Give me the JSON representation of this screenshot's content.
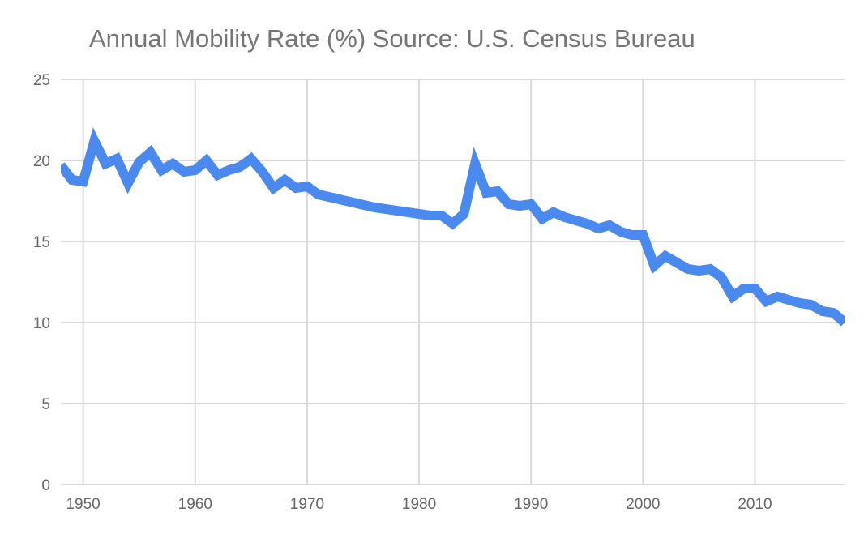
{
  "chart_data": {
    "type": "line",
    "title": "Annual Mobility Rate (%)  Source: U.S. Census Bureau",
    "xlabel": "",
    "ylabel": "",
    "xlim": [
      1948,
      2018
    ],
    "ylim": [
      0,
      25
    ],
    "grid": true,
    "line_color": "#4a89ee",
    "x_ticks": [
      1950,
      1960,
      1970,
      1980,
      1990,
      2000,
      2010
    ],
    "y_ticks": [
      0,
      5,
      10,
      15,
      20,
      25
    ],
    "series": [
      {
        "name": "Annual Mobility Rate (%)",
        "x": [
          1948,
          1949,
          1950,
          1951,
          1952,
          1953,
          1954,
          1955,
          1956,
          1957,
          1958,
          1959,
          1960,
          1961,
          1962,
          1963,
          1964,
          1965,
          1966,
          1967,
          1968,
          1969,
          1970,
          1971,
          1976,
          1981,
          1982,
          1983,
          1984,
          1985,
          1986,
          1987,
          1988,
          1989,
          1990,
          1991,
          1992,
          1993,
          1994,
          1995,
          1996,
          1997,
          1998,
          1999,
          2000,
          2001,
          2002,
          2003,
          2004,
          2005,
          2006,
          2007,
          2008,
          2009,
          2010,
          2011,
          2012,
          2013,
          2014,
          2015,
          2016,
          2017,
          2018
        ],
        "values": [
          19.7,
          18.8,
          18.7,
          21.2,
          19.8,
          20.1,
          18.6,
          19.9,
          20.5,
          19.4,
          19.8,
          19.3,
          19.4,
          20.0,
          19.1,
          19.4,
          19.6,
          20.1,
          19.3,
          18.3,
          18.8,
          18.3,
          18.4,
          17.9,
          17.1,
          16.6,
          16.6,
          16.1,
          16.7,
          19.8,
          18.0,
          18.1,
          17.3,
          17.2,
          17.3,
          16.4,
          16.8,
          16.5,
          16.3,
          16.1,
          15.8,
          16.0,
          15.6,
          15.4,
          15.4,
          13.5,
          14.1,
          13.7,
          13.3,
          13.2,
          13.3,
          12.8,
          11.6,
          12.1,
          12.1,
          11.3,
          11.6,
          11.4,
          11.2,
          11.1,
          10.7,
          10.6,
          10.0
        ]
      }
    ]
  }
}
